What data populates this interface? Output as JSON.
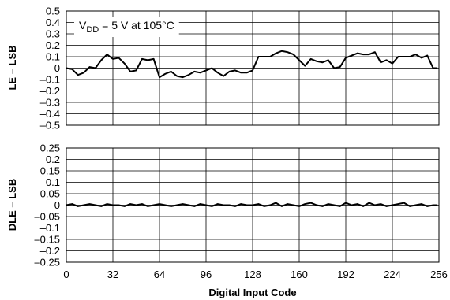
{
  "chart_data": [
    {
      "type": "line",
      "title": "",
      "ylabel": "LE – LSB",
      "xlabel": "",
      "annotation": {
        "prefix": "V",
        "subscript": "DD",
        "suffix": " = 5 V at 105°C"
      },
      "xlim": [
        0,
        256
      ],
      "ylim": [
        -0.5,
        0.5
      ],
      "xticks": [
        0,
        32,
        64,
        96,
        128,
        160,
        192,
        224,
        256
      ],
      "yticks": [
        0.5,
        0.4,
        0.3,
        0.2,
        0.1,
        0,
        -0.1,
        -0.2,
        -0.3,
        -0.4,
        -0.5
      ],
      "ytick_labels": [
        "0.5",
        "0.4",
        "0.3",
        "0.2",
        "0.1",
        "0",
        "–0.1",
        "–0.2",
        "–0.3",
        "–0.4",
        "–0.5"
      ],
      "grid": true,
      "series": [
        {
          "x": [
            0,
            4,
            8,
            12,
            16,
            20,
            24,
            28,
            32,
            36,
            40,
            44,
            48,
            52,
            56,
            60,
            64,
            68,
            72,
            76,
            80,
            84,
            88,
            92,
            96,
            100,
            104,
            108,
            112,
            116,
            120,
            124,
            128,
            132,
            136,
            140,
            144,
            148,
            152,
            156,
            160,
            164,
            168,
            172,
            176,
            180,
            184,
            188,
            192,
            196,
            200,
            204,
            208,
            212,
            216,
            220,
            224,
            228,
            232,
            236,
            240,
            244,
            248,
            252,
            255
          ],
          "y": [
            0.0,
            -0.01,
            -0.06,
            -0.04,
            0.01,
            0.0,
            0.07,
            0.12,
            0.08,
            0.09,
            0.04,
            -0.03,
            -0.02,
            0.08,
            0.07,
            0.08,
            -0.08,
            -0.05,
            -0.03,
            -0.07,
            -0.08,
            -0.06,
            -0.03,
            -0.04,
            -0.02,
            0.0,
            -0.04,
            -0.07,
            -0.03,
            -0.02,
            -0.04,
            -0.04,
            -0.02,
            0.1,
            0.1,
            0.1,
            0.13,
            0.15,
            0.14,
            0.12,
            0.07,
            0.02,
            0.08,
            0.06,
            0.05,
            0.07,
            0.0,
            0.01,
            0.09,
            0.11,
            0.13,
            0.12,
            0.12,
            0.14,
            0.05,
            0.07,
            0.04,
            0.1,
            0.1,
            0.1,
            0.12,
            0.09,
            0.11,
            0.0,
            0.0
          ]
        }
      ]
    },
    {
      "type": "line",
      "title": "",
      "ylabel": "DLE – LSB",
      "xlabel": "Digital Input Code",
      "xlim": [
        0,
        256
      ],
      "ylim": [
        -0.25,
        0.25
      ],
      "xticks": [
        0,
        32,
        64,
        96,
        128,
        160,
        192,
        224,
        256
      ],
      "xtick_labels": [
        "0",
        "32",
        "64",
        "96",
        "128",
        "160",
        "192",
        "224",
        "256"
      ],
      "yticks": [
        0.25,
        0.2,
        0.15,
        0.1,
        0.05,
        0,
        -0.05,
        -0.1,
        -0.15,
        -0.2,
        -0.25
      ],
      "ytick_labels": [
        "0.25",
        "0.2",
        "0.15",
        "0.1",
        "0.05",
        "0",
        "–0.05",
        "–0.1",
        "–0.15",
        "–0.2",
        "–0.25"
      ],
      "grid": true,
      "series": [
        {
          "x": [
            0,
            4,
            8,
            12,
            16,
            20,
            24,
            28,
            32,
            36,
            40,
            44,
            48,
            52,
            56,
            60,
            64,
            68,
            72,
            76,
            80,
            84,
            88,
            92,
            96,
            100,
            104,
            108,
            112,
            116,
            120,
            124,
            128,
            132,
            136,
            140,
            144,
            148,
            152,
            156,
            160,
            164,
            168,
            172,
            176,
            180,
            184,
            188,
            192,
            196,
            200,
            204,
            208,
            212,
            216,
            220,
            224,
            228,
            232,
            236,
            240,
            244,
            248,
            252,
            255
          ],
          "y": [
            0.0,
            0.005,
            -0.005,
            0.0,
            0.005,
            0.0,
            -0.005,
            0.005,
            0.0,
            0.0,
            -0.005,
            0.005,
            0.0,
            0.005,
            -0.005,
            0.0,
            0.005,
            0.0,
            -0.005,
            0.0,
            0.005,
            0.0,
            -0.005,
            0.005,
            0.0,
            -0.005,
            0.005,
            0.0,
            0.0,
            -0.005,
            0.005,
            0.0,
            0.0,
            0.005,
            -0.005,
            0.0,
            0.01,
            -0.005,
            0.005,
            0.0,
            -0.005,
            0.005,
            0.01,
            0.0,
            -0.005,
            0.005,
            0.0,
            -0.005,
            0.01,
            0.0,
            0.005,
            -0.005,
            0.01,
            0.0,
            0.005,
            -0.005,
            0.0,
            0.005,
            0.01,
            -0.005,
            0.0,
            0.005,
            -0.005,
            0.0,
            0.0
          ]
        }
      ]
    }
  ]
}
